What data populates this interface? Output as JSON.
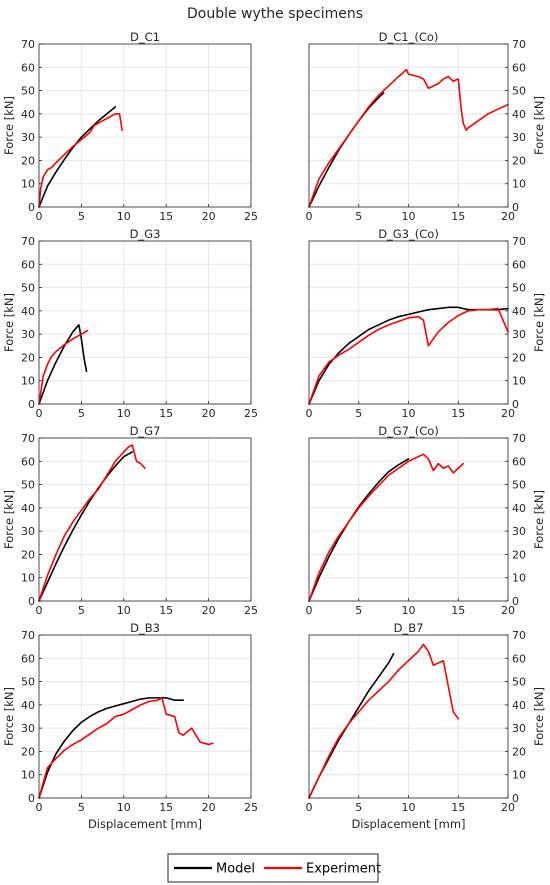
{
  "title": "Double wythe specimens",
  "legend": {
    "placement": "bottom-center",
    "entries": [
      "Model",
      "Experiment"
    ]
  },
  "colors": {
    "Model": "#000000",
    "Experiment": "#ff0000",
    "grid": "#e6e6e6",
    "axis": "#262626"
  },
  "chart_data": [
    {
      "type": "line",
      "title": "D_C1",
      "xlabel": "",
      "ylabel": "Force [kN]",
      "xlim": [
        0,
        25
      ],
      "ylim": [
        0,
        70
      ],
      "xticks": [
        0,
        5,
        10,
        15,
        20,
        25
      ],
      "yticks": [
        0,
        10,
        20,
        30,
        40,
        50,
        60,
        70
      ],
      "yaxis_side": "left",
      "grid": true,
      "series": [
        {
          "name": "Model",
          "x": [
            0,
            1,
            2,
            3,
            4,
            5,
            6,
            7,
            8,
            9
          ],
          "y": [
            0,
            9,
            15,
            20.5,
            25.5,
            30,
            33.5,
            37,
            40,
            43
          ]
        },
        {
          "name": "Experiment",
          "x": [
            0,
            0.2,
            0.5,
            1,
            1.5,
            2,
            3,
            4,
            5,
            6,
            6.5,
            7,
            7.5,
            8,
            8.5,
            9,
            9.5,
            9.8
          ],
          "y": [
            0,
            8,
            13,
            16,
            17,
            19,
            22.5,
            26,
            29,
            32,
            35,
            36,
            37,
            38,
            39,
            40,
            40,
            33
          ]
        }
      ]
    },
    {
      "type": "line",
      "title": "D_C1_(Co)",
      "xlabel": "",
      "ylabel": "Force [kN]",
      "xlim": [
        0,
        20
      ],
      "ylim": [
        0,
        70
      ],
      "xticks": [
        0,
        5,
        10,
        15,
        20
      ],
      "yticks": [
        0,
        10,
        20,
        30,
        40,
        50,
        60,
        70
      ],
      "yaxis_side": "right",
      "grid": true,
      "series": [
        {
          "name": "Model",
          "x": [
            0,
            1,
            2,
            3,
            4,
            5,
            6,
            7,
            7.5
          ],
          "y": [
            0,
            9,
            17,
            24.5,
            31,
            37,
            42.5,
            47,
            49
          ]
        },
        {
          "name": "Experiment",
          "x": [
            0,
            0.5,
            1,
            2,
            3,
            4,
            5,
            6,
            7,
            8,
            9,
            9.8,
            10,
            11,
            11.5,
            12,
            13,
            13.5,
            14,
            14.5,
            15,
            15.3,
            15.5,
            15.8,
            16,
            17,
            18,
            19,
            20
          ],
          "y": [
            0,
            6,
            12,
            19,
            25,
            31,
            37,
            43,
            48,
            52,
            56,
            59,
            57,
            56,
            55,
            51,
            53,
            55,
            56,
            54,
            55,
            42,
            36,
            33,
            34,
            37,
            40,
            42,
            44
          ]
        }
      ]
    },
    {
      "type": "line",
      "title": "D_G3",
      "xlabel": "",
      "ylabel": "Force [kN]",
      "xlim": [
        0,
        25
      ],
      "ylim": [
        0,
        70
      ],
      "xticks": [
        0,
        5,
        10,
        15,
        20,
        25
      ],
      "yticks": [
        0,
        10,
        20,
        30,
        40,
        50,
        60,
        70
      ],
      "yaxis_side": "left",
      "grid": true,
      "series": [
        {
          "name": "Model",
          "x": [
            0,
            1,
            2,
            3,
            4,
            4.7,
            5,
            5.3,
            5.6
          ],
          "y": [
            0,
            10,
            18,
            25,
            31,
            34,
            28,
            20,
            14
          ]
        },
        {
          "name": "Experiment",
          "x": [
            0,
            0.5,
            1,
            1.5,
            2,
            3,
            4,
            5,
            5.7
          ],
          "y": [
            0,
            12,
            17,
            20.5,
            22.5,
            25.5,
            28,
            30,
            31.5
          ]
        }
      ]
    },
    {
      "type": "line",
      "title": "D_G3_(Co)",
      "xlabel": "",
      "ylabel": "Force [kN]",
      "xlim": [
        0,
        20
      ],
      "ylim": [
        0,
        70
      ],
      "xticks": [
        0,
        5,
        10,
        15,
        20
      ],
      "yticks": [
        0,
        10,
        20,
        30,
        40,
        50,
        60,
        70
      ],
      "yaxis_side": "right",
      "grid": true,
      "series": [
        {
          "name": "Model",
          "x": [
            0,
            1,
            2,
            3,
            4,
            5,
            6,
            7,
            8,
            9,
            10,
            11,
            12,
            13,
            14,
            15,
            16,
            17,
            18,
            19,
            20
          ],
          "y": [
            0,
            10,
            17,
            22,
            26,
            29,
            32,
            34,
            36,
            37.5,
            38.5,
            39.5,
            40.5,
            41,
            41.5,
            41.5,
            40.5,
            40.5,
            40.5,
            40.5,
            41
          ]
        },
        {
          "name": "Experiment",
          "x": [
            0,
            1,
            2,
            3,
            4,
            5,
            6,
            7,
            8,
            9,
            10,
            11,
            11.5,
            12,
            12.5,
            13,
            14,
            15,
            16,
            17,
            18,
            19,
            20
          ],
          "y": [
            0,
            12,
            18,
            21,
            23.5,
            26.5,
            29.5,
            32,
            34,
            35.5,
            37,
            37.5,
            36,
            25,
            28,
            31,
            35,
            38,
            40,
            40.5,
            40.5,
            41,
            31
          ]
        }
      ]
    },
    {
      "type": "line",
      "title": "D_G7",
      "xlabel": "",
      "ylabel": "Force [kN]",
      "xlim": [
        0,
        25
      ],
      "ylim": [
        0,
        70
      ],
      "xticks": [
        0,
        5,
        10,
        15,
        20,
        25
      ],
      "yticks": [
        0,
        10,
        20,
        30,
        40,
        50,
        60,
        70
      ],
      "yaxis_side": "left",
      "grid": true,
      "series": [
        {
          "name": "Model",
          "x": [
            0,
            1,
            2,
            3,
            4,
            5,
            6,
            7,
            8,
            9,
            10,
            11
          ],
          "y": [
            0,
            8,
            16,
            23.5,
            30.5,
            37,
            43,
            48.5,
            53.5,
            58,
            62,
            64
          ]
        },
        {
          "name": "Experiment",
          "x": [
            0,
            1,
            2,
            3,
            4,
            5,
            6,
            7,
            8,
            9,
            9.5,
            10,
            10.5,
            11,
            11.5,
            12,
            12.5
          ],
          "y": [
            0,
            11,
            20,
            28,
            34,
            39,
            44,
            48,
            54,
            60,
            62,
            64,
            66,
            67,
            60,
            59,
            57
          ]
        }
      ]
    },
    {
      "type": "line",
      "title": "D_G7_(Co)",
      "xlabel": "",
      "ylabel": "Force [kN]",
      "xlim": [
        0,
        20
      ],
      "ylim": [
        0,
        70
      ],
      "xticks": [
        0,
        5,
        10,
        15,
        20
      ],
      "yticks": [
        0,
        10,
        20,
        30,
        40,
        50,
        60,
        70
      ],
      "yaxis_side": "right",
      "grid": true,
      "series": [
        {
          "name": "Model",
          "x": [
            0,
            1,
            2,
            3,
            4,
            5,
            6,
            7,
            8,
            9,
            10
          ],
          "y": [
            0,
            10,
            19,
            27,
            34,
            40.5,
            46,
            51,
            55.5,
            58.5,
            61
          ]
        },
        {
          "name": "Experiment",
          "x": [
            0,
            1,
            2,
            3,
            4,
            5,
            6,
            7,
            8,
            9,
            10,
            11,
            11.5,
            12,
            12.5,
            13,
            13.5,
            14,
            14.5,
            15,
            15.5
          ],
          "y": [
            0,
            12,
            21,
            28,
            34,
            40,
            45,
            49.5,
            54,
            57,
            60,
            62,
            63,
            61,
            56,
            59,
            57,
            58,
            55,
            57,
            59
          ]
        }
      ]
    },
    {
      "type": "line",
      "title": "D_B3",
      "xlabel": "Displacement [mm]",
      "ylabel": "Force [kN]",
      "xlim": [
        0,
        25
      ],
      "ylim": [
        0,
        70
      ],
      "xticks": [
        0,
        5,
        10,
        15,
        20,
        25
      ],
      "yticks": [
        0,
        10,
        20,
        30,
        40,
        50,
        60,
        70
      ],
      "yaxis_side": "left",
      "grid": true,
      "series": [
        {
          "name": "Model",
          "x": [
            0,
            1,
            2,
            3,
            4,
            5,
            6,
            7,
            8,
            9,
            10,
            11,
            12,
            13,
            14,
            15,
            16,
            17
          ],
          "y": [
            0,
            11,
            19,
            24.5,
            29,
            32.5,
            35,
            37,
            38.5,
            39.5,
            40.5,
            41.5,
            42.5,
            43,
            43,
            43,
            42,
            42
          ]
        },
        {
          "name": "Experiment",
          "x": [
            0,
            1,
            2,
            3,
            4,
            5,
            6,
            7,
            8,
            9,
            10,
            11,
            12,
            13,
            14,
            14.5,
            15,
            16,
            16.5,
            17,
            18,
            19,
            20,
            20.5
          ],
          "y": [
            0,
            13,
            17,
            20.5,
            23,
            25,
            27.5,
            30,
            32,
            35,
            36,
            38,
            40,
            41.5,
            42,
            43,
            36,
            35,
            28,
            27,
            30,
            24,
            23,
            23.5
          ]
        }
      ]
    },
    {
      "type": "line",
      "title": "D_B7",
      "xlabel": "Displacement [mm]",
      "ylabel": "Force [kN]",
      "xlim": [
        0,
        20
      ],
      "ylim": [
        0,
        70
      ],
      "xticks": [
        0,
        5,
        10,
        15,
        20
      ],
      "yticks": [
        0,
        10,
        20,
        30,
        40,
        50,
        60,
        70
      ],
      "yaxis_side": "right",
      "grid": true,
      "series": [
        {
          "name": "Model",
          "x": [
            0,
            1,
            2,
            3,
            4,
            5,
            6,
            7,
            8,
            8.5
          ],
          "y": [
            0,
            9,
            17,
            25,
            32,
            39,
            46,
            52,
            58,
            62
          ]
        },
        {
          "name": "Experiment",
          "x": [
            0,
            1,
            2,
            3,
            4,
            5,
            6,
            7,
            8,
            9,
            10,
            11,
            11.5,
            12,
            12.5,
            13,
            13.5,
            14,
            14.5,
            15
          ],
          "y": [
            0,
            9,
            18,
            26,
            32,
            37,
            42,
            46,
            50,
            55,
            59,
            63,
            66,
            63,
            57,
            58,
            59,
            48,
            37,
            34
          ]
        }
      ]
    }
  ]
}
